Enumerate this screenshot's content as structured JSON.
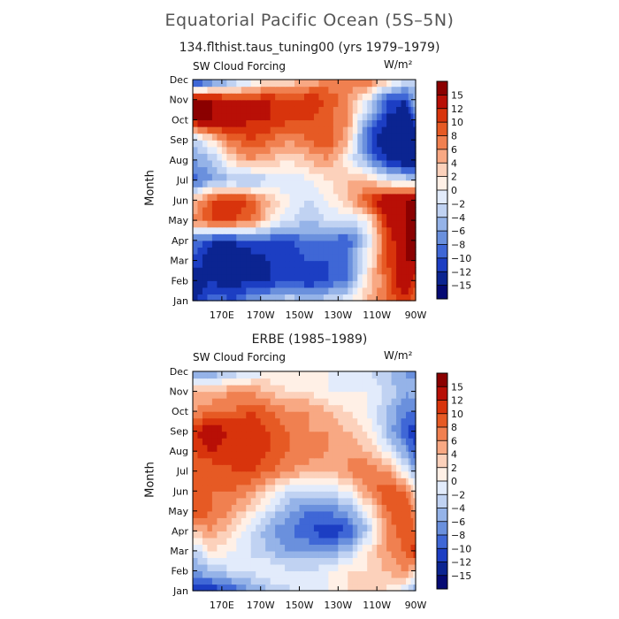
{
  "figure": {
    "title": "Equatorial Pacific Ocean (5S–5N)",
    "unit_label": "W/m²"
  },
  "colorbar": {
    "levels": [
      "15",
      "12",
      "10",
      "8",
      "6",
      "4",
      "2",
      "0",
      "−2",
      "−4",
      "−6",
      "−8",
      "−10",
      "−12",
      "−15"
    ],
    "colors": [
      "#8b0000",
      "#b80f06",
      "#d8340c",
      "#e65a24",
      "#f08050",
      "#f8a883",
      "#fcd1bb",
      "#fff0e6",
      "#e2ebfb",
      "#c0d2f2",
      "#95b3e8",
      "#6a90dd",
      "#3f67d6",
      "#1c3ec3",
      "#0b2491",
      "#050a73"
    ]
  },
  "chart_data": [
    {
      "type": "heatmap",
      "title": "134.flthist.taus_tuning00 (yrs 1979–1979)",
      "panel_label": "SW Cloud Forcing",
      "units": "W/m²",
      "xlabel": "",
      "ylabel": "Month",
      "x_range": [
        155,
        270
      ],
      "x_ticks": [
        170,
        190,
        210,
        230,
        250,
        270
      ],
      "x_tick_labels": [
        "170E",
        "170W",
        "150W",
        "130W",
        "110W",
        "90W"
      ],
      "y_tick_labels": [
        "Jan",
        "Feb",
        "Mar",
        "Apr",
        "May",
        "Jun",
        "Jul",
        "Aug",
        "Sep",
        "Oct",
        "Nov",
        "Dec"
      ],
      "lon_grid": [
        155,
        165,
        175,
        185,
        195,
        205,
        215,
        225,
        235,
        245,
        255,
        265,
        270
      ],
      "values_by_month": [
        [
          -12,
          -8,
          -10,
          -6,
          -4,
          -2,
          -4,
          -2,
          0,
          4,
          8,
          12,
          8
        ],
        [
          -15,
          -12,
          -14,
          -12,
          -12,
          -10,
          -12,
          -10,
          -8,
          2,
          8,
          15,
          10
        ],
        [
          -10,
          -14,
          -14,
          -14,
          -12,
          -12,
          -10,
          -10,
          -8,
          0,
          10,
          15,
          15
        ],
        [
          -8,
          -12,
          -12,
          -10,
          -10,
          -10,
          -8,
          -8,
          -10,
          -2,
          10,
          15,
          15
        ],
        [
          6,
          10,
          10,
          8,
          2,
          -2,
          -4,
          -2,
          -2,
          0,
          12,
          15,
          15
        ],
        [
          4,
          10,
          12,
          10,
          4,
          0,
          -2,
          0,
          4,
          10,
          15,
          15,
          15
        ],
        [
          -10,
          -6,
          -4,
          -6,
          -2,
          -2,
          0,
          2,
          4,
          4,
          0,
          -2,
          -2
        ],
        [
          -6,
          -4,
          2,
          6,
          4,
          2,
          4,
          6,
          0,
          -6,
          -12,
          -15,
          -15
        ],
        [
          -4,
          2,
          8,
          10,
          8,
          6,
          8,
          10,
          4,
          -10,
          -15,
          -15,
          -15
        ],
        [
          15,
          15,
          15,
          12,
          12,
          10,
          10,
          8,
          6,
          -6,
          -12,
          -15,
          -10
        ],
        [
          15,
          15,
          12,
          12,
          12,
          10,
          12,
          10,
          6,
          0,
          -10,
          -12,
          -4
        ],
        [
          -15,
          -10,
          -6,
          -2,
          2,
          2,
          4,
          6,
          8,
          8,
          4,
          -2,
          -4
        ]
      ]
    },
    {
      "type": "heatmap",
      "title": "ERBE (1985–1989)",
      "panel_label": "SW Cloud Forcing",
      "units": "W/m²",
      "xlabel": "",
      "ylabel": "Month",
      "x_range": [
        155,
        270
      ],
      "x_ticks": [
        170,
        190,
        210,
        230,
        250,
        270
      ],
      "x_tick_labels": [
        "170E",
        "170W",
        "150W",
        "130W",
        "110W",
        "90W"
      ],
      "y_tick_labels": [
        "Jan",
        "Feb",
        "Mar",
        "Apr",
        "May",
        "Jun",
        "Jul",
        "Aug",
        "Sep",
        "Oct",
        "Nov",
        "Dec"
      ],
      "lon_grid": [
        155,
        165,
        175,
        185,
        195,
        205,
        215,
        225,
        235,
        245,
        255,
        265,
        270
      ],
      "values_by_month": [
        [
          -12,
          -12,
          -10,
          -6,
          -4,
          -2,
          0,
          0,
          2,
          4,
          2,
          -2,
          -6
        ],
        [
          -6,
          -4,
          -2,
          -2,
          0,
          -2,
          -2,
          0,
          2,
          2,
          4,
          6,
          2
        ],
        [
          -4,
          2,
          0,
          -2,
          -4,
          -6,
          -6,
          -6,
          -4,
          2,
          6,
          8,
          12
        ],
        [
          4,
          6,
          2,
          -2,
          -6,
          -8,
          -10,
          -12,
          -10,
          -4,
          6,
          10,
          8
        ],
        [
          10,
          8,
          6,
          2,
          -2,
          -6,
          -8,
          -8,
          -6,
          0,
          8,
          10,
          6
        ],
        [
          8,
          8,
          8,
          6,
          2,
          -2,
          -2,
          -2,
          0,
          6,
          10,
          8,
          2
        ],
        [
          8,
          8,
          10,
          10,
          8,
          6,
          4,
          4,
          6,
          8,
          6,
          0,
          -6
        ],
        [
          10,
          12,
          10,
          12,
          10,
          8,
          8,
          6,
          6,
          4,
          0,
          -6,
          -10
        ],
        [
          12,
          14,
          12,
          12,
          10,
          8,
          6,
          6,
          4,
          2,
          -4,
          -10,
          -12
        ],
        [
          6,
          8,
          8,
          10,
          8,
          6,
          6,
          4,
          2,
          0,
          -4,
          -8,
          -8
        ],
        [
          4,
          4,
          6,
          6,
          4,
          2,
          2,
          0,
          0,
          0,
          -2,
          -6,
          -4
        ],
        [
          -8,
          -6,
          -4,
          -2,
          0,
          0,
          2,
          0,
          -2,
          -2,
          -4,
          -6,
          -8
        ]
      ]
    }
  ]
}
